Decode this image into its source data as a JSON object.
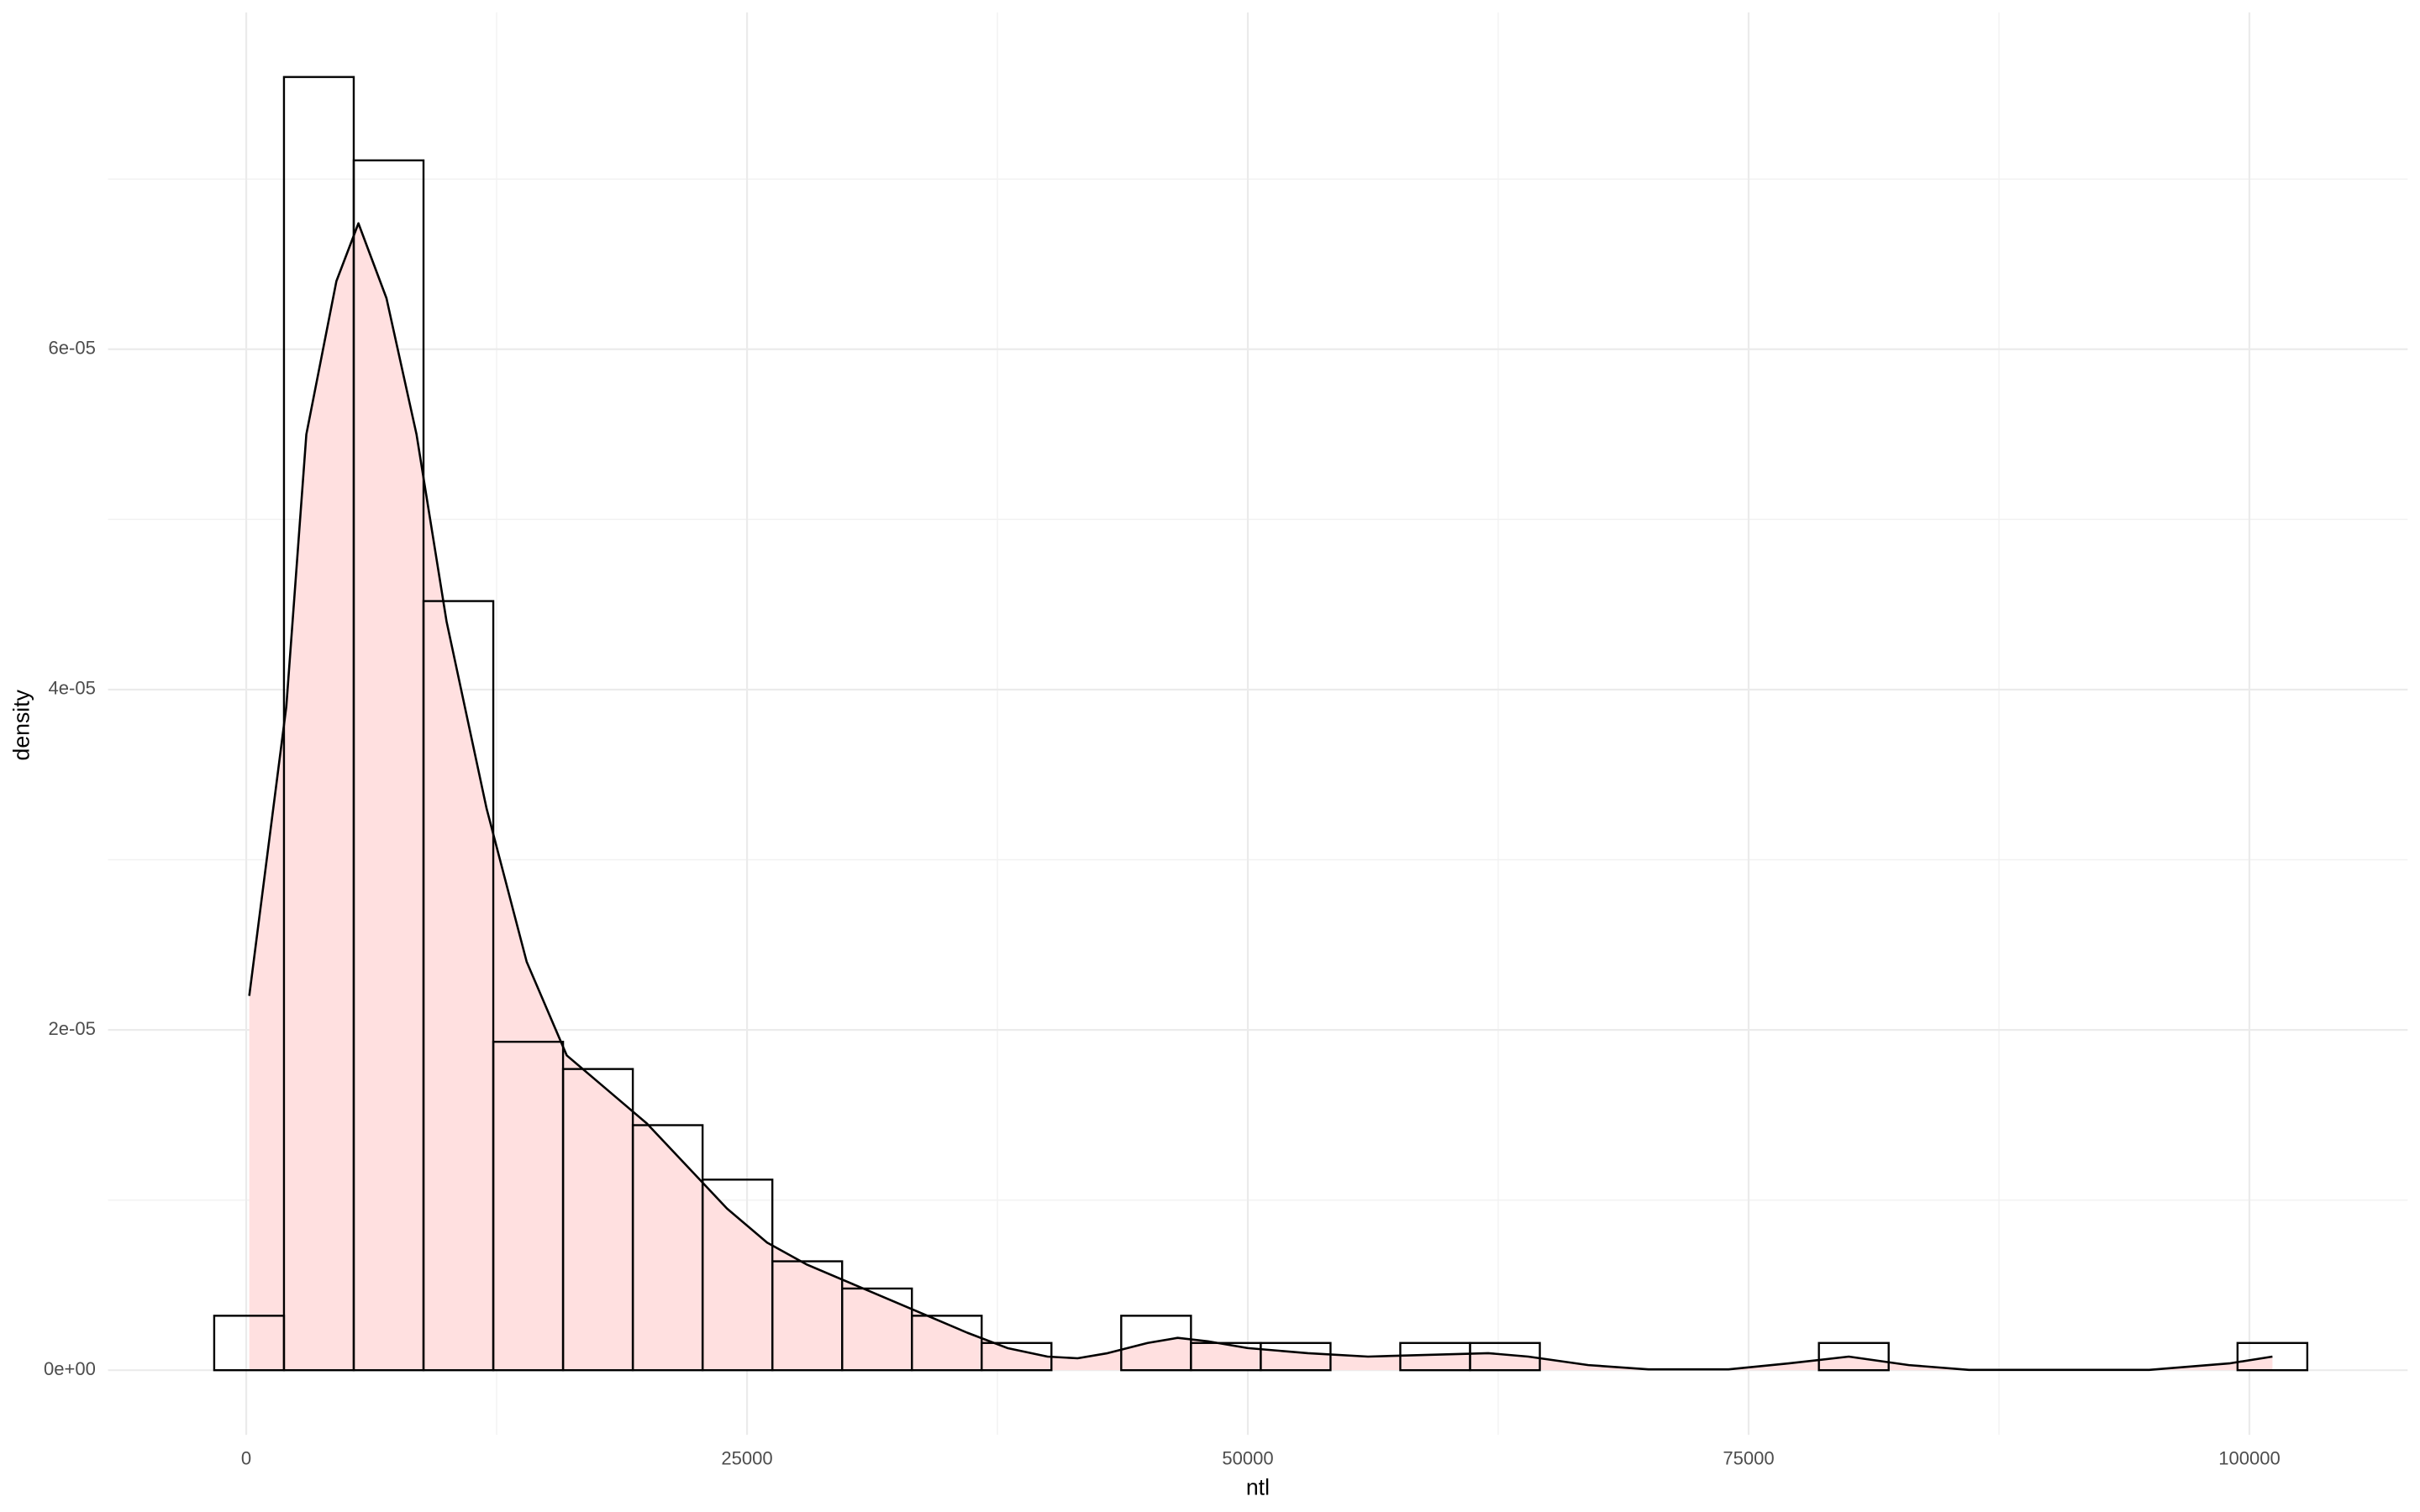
{
  "chart_data": {
    "type": "histogram",
    "x_label": "ntl",
    "y_label": "density",
    "bins": [
      -1600,
      1883,
      5366,
      8849,
      12332,
      15815,
      19298,
      22781,
      26264,
      29747,
      33230,
      36713,
      40196,
      43679,
      47162,
      50645,
      54128,
      57611,
      61094,
      64577,
      68060,
      71543,
      75026,
      78509,
      81992,
      85475,
      88958,
      92441,
      95924,
      99407,
      102890
    ],
    "values": [
      3.2e-06,
      7.6e-05,
      7.11e-05,
      4.52e-05,
      1.93e-05,
      1.77e-05,
      1.44e-05,
      1.12e-05,
      6.4e-06,
      4.8e-06,
      3.2e-06,
      1.6e-06,
      0,
      3.2e-06,
      1.6e-06,
      1.6e-06,
      0,
      1.6e-06,
      1.6e-06,
      0,
      0,
      0,
      0,
      1.6e-06,
      0,
      0,
      0,
      0,
      0,
      1.6e-06
    ],
    "bar_edge_color": "#000000",
    "density": {
      "x": [
        150,
        2000,
        3000,
        4500,
        5600,
        7000,
        8500,
        10000,
        12000,
        14000,
        16000,
        18000,
        20000,
        22000,
        24000,
        26000,
        28000,
        30000,
        32000,
        34000,
        36000,
        38000,
        40000,
        41500,
        43000,
        45000,
        46500,
        48000,
        50000,
        53000,
        56000,
        59000,
        62000,
        64000,
        67000,
        70000,
        74000,
        77000,
        80000,
        83000,
        86000,
        95000,
        99000,
        101150
      ],
      "y": [
        2.2e-05,
        3.9e-05,
        5.5e-05,
        6.4e-05,
        6.74e-05,
        6.3e-05,
        5.5e-05,
        4.4e-05,
        3.3e-05,
        2.4e-05,
        1.85e-05,
        1.65e-05,
        1.45e-05,
        1.2e-05,
        9.5e-06,
        7.5e-06,
        6.2e-06,
        5.2e-06,
        4.2e-06,
        3.2e-06,
        2.2e-06,
        1.3e-06,
        8e-07,
        7e-07,
        1e-06,
        1.6e-06,
        1.9e-06,
        1.7e-06,
        1.3e-06,
        1e-06,
        8e-07,
        9e-07,
        1e-06,
        8e-07,
        3e-07,
        5e-08,
        5e-08,
        4e-07,
        8e-07,
        3e-07,
        2e-08,
        2e-08,
        4e-07,
        8e-07
      ],
      "fill": "#ffe0e0",
      "line_color": "#000000"
    },
    "xlim": [
      -6900,
      107900
    ],
    "ylim": [
      -3.8e-06,
      7.98e-05
    ],
    "xticks": [
      0,
      25000,
      50000,
      75000,
      100000
    ],
    "x_minor_ticks": [
      12500,
      37500,
      62500,
      87500
    ],
    "yticks": [
      {
        "value": 0,
        "label": "0e+00"
      },
      {
        "value": 2e-05,
        "label": "2e-05"
      },
      {
        "value": 4e-05,
        "label": "4e-05"
      },
      {
        "value": 6e-05,
        "label": "6e-05"
      }
    ],
    "y_minor_ticks": [
      1e-05,
      3e-05,
      5e-05,
      7e-05
    ],
    "grid": true
  }
}
